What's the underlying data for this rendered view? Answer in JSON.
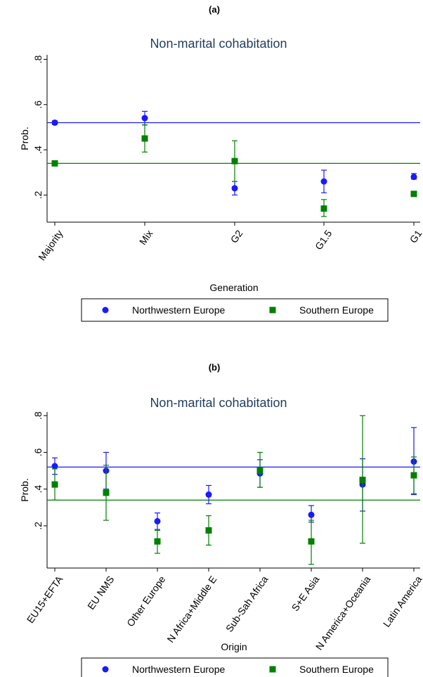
{
  "figure": {
    "panels": [
      {
        "label": "(a)"
      },
      {
        "label": "(b)"
      }
    ]
  },
  "chart_data": [
    {
      "type": "scatter",
      "panel_label": "(a)",
      "title": "Non-marital cohabitation",
      "xlabel": "Generation",
      "ylabel": "Prob.",
      "categories": [
        "Majority",
        "Mix",
        "G2",
        "G1.5",
        "G1"
      ],
      "yticks": [
        ".2",
        ".4",
        ".6",
        ".8"
      ],
      "ylim": [
        0.08,
        0.82
      ],
      "grid": false,
      "legend_position": "bottom",
      "series": [
        {
          "name": "Northwestern Europe",
          "color": "#1a1aff",
          "marker": "circle",
          "values": [
            0.52,
            0.54,
            0.23,
            0.26,
            0.28
          ],
          "ci_low": [
            0.512,
            0.51,
            0.2,
            0.21,
            0.27
          ],
          "ci_high": [
            0.528,
            0.57,
            0.26,
            0.31,
            0.295
          ],
          "reference_line": 0.52
        },
        {
          "name": "Southern Europe",
          "color": "#008000",
          "marker": "square",
          "values": [
            0.34,
            0.45,
            0.35,
            0.14,
            0.205
          ],
          "ci_low": [
            0.335,
            0.39,
            0.26,
            0.105,
            0.195
          ],
          "ci_high": [
            0.345,
            0.51,
            0.44,
            0.18,
            0.215
          ],
          "reference_line": 0.34
        }
      ]
    },
    {
      "type": "scatter",
      "panel_label": "(b)",
      "title": "Non-marital cohabitation",
      "xlabel": "Origin",
      "ylabel": "Prob.",
      "categories": [
        "EU15+EFTA",
        "EU NMS",
        "Other Europe",
        "N Africa+Middle E",
        "Sub-Sah Africa",
        "S+E Asia",
        "N America+Oceania",
        "Latin America"
      ],
      "yticks": [
        ".2",
        ".4",
        ".6",
        ".8"
      ],
      "ylim": [
        -0.03,
        0.82
      ],
      "grid": false,
      "legend_position": "bottom",
      "series": [
        {
          "name": "Northwestern Europe",
          "color": "#1a1aff",
          "marker": "circle",
          "values": [
            0.525,
            0.5,
            0.225,
            0.37,
            0.485,
            0.26,
            0.425,
            0.55
          ],
          "ci_low": [
            0.48,
            0.4,
            0.18,
            0.32,
            0.41,
            0.22,
            0.28,
            0.37
          ],
          "ci_high": [
            0.57,
            0.6,
            0.27,
            0.42,
            0.56,
            0.31,
            0.565,
            0.735
          ],
          "reference_line": 0.52
        },
        {
          "name": "Southern Europe",
          "color": "#008000",
          "marker": "square",
          "values": [
            0.425,
            0.38,
            0.115,
            0.175,
            0.5,
            0.115,
            0.45,
            0.475
          ],
          "ci_low": [
            0.34,
            0.23,
            0.05,
            0.095,
            0.41,
            -0.01,
            0.105,
            0.375
          ],
          "ci_high": [
            0.51,
            0.53,
            0.175,
            0.255,
            0.6,
            0.23,
            0.8,
            0.575
          ],
          "reference_line": 0.34
        }
      ]
    }
  ]
}
